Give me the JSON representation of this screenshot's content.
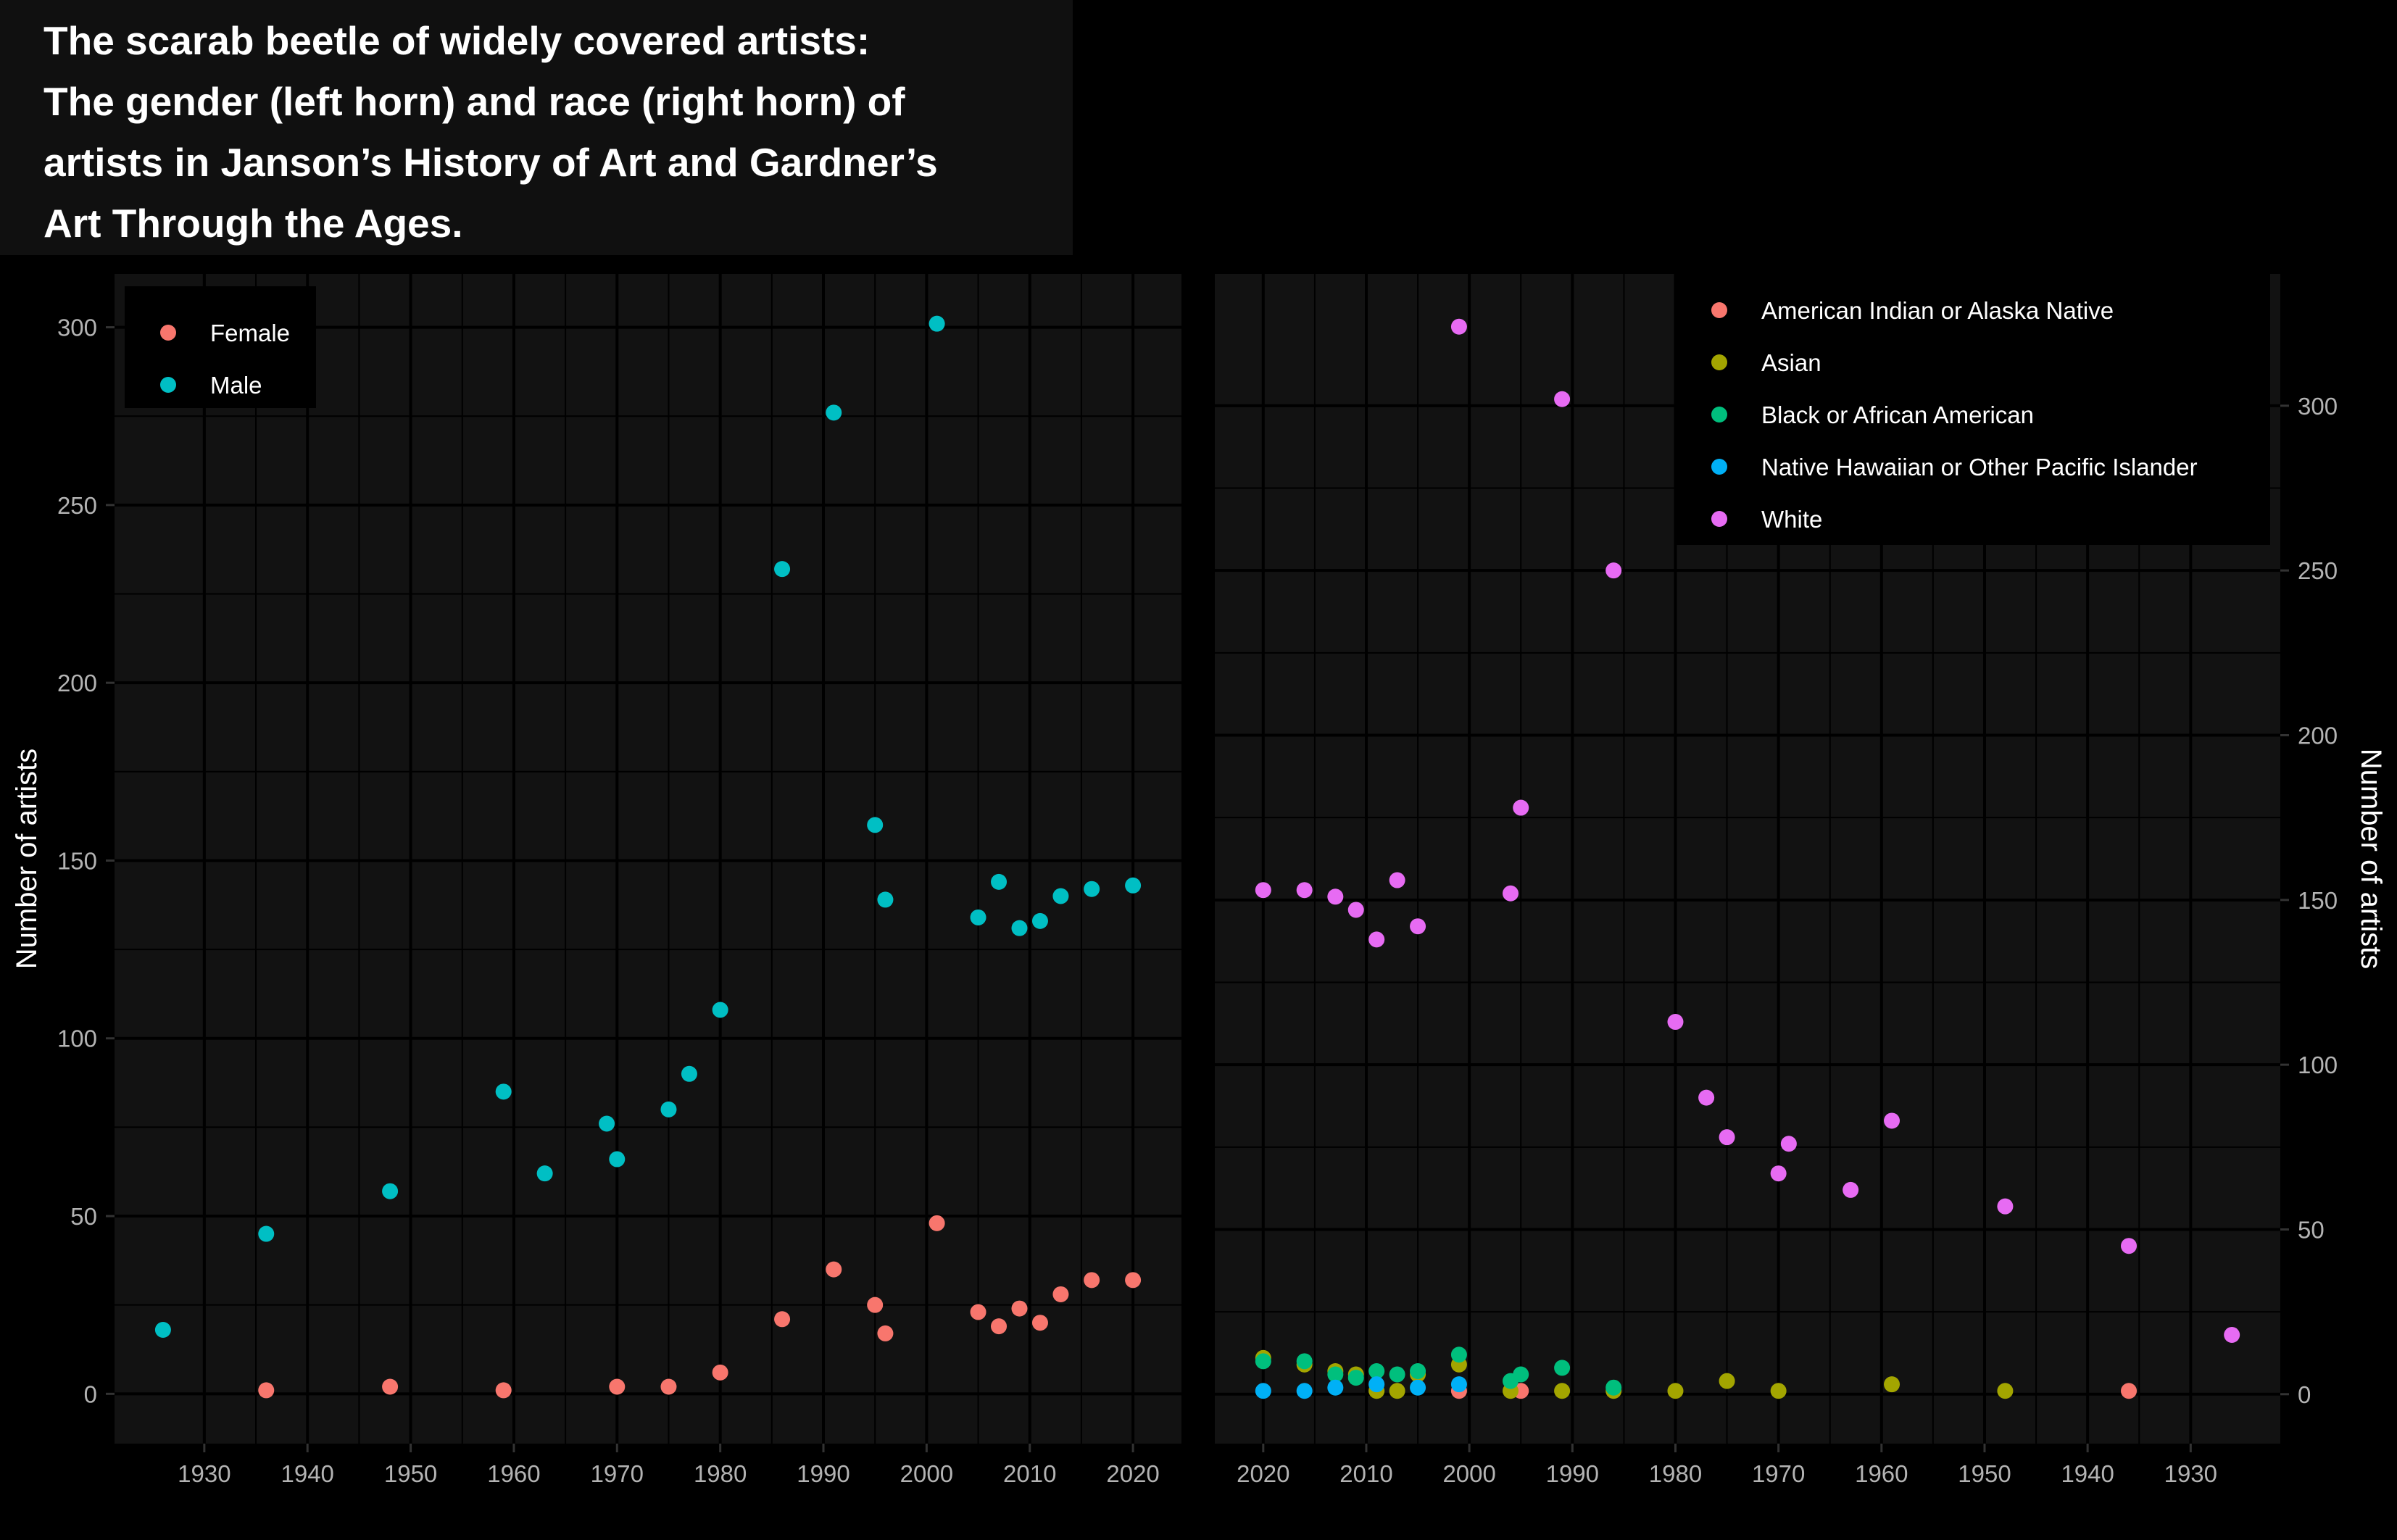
{
  "title_lines": [
    "The scarab beetle of widely covered artists:",
    "The gender (left horn) and race (right horn) of",
    "artists in Janson’s History of Art and Gardner’s",
    "Art Through the Ages."
  ],
  "colors": {
    "background": "#000000",
    "panel": "#121212",
    "grid": "#000000",
    "text": "#ffffff",
    "tick_text": "#b3b3b3"
  },
  "chart_data": [
    {
      "type": "scatter",
      "panel": "left",
      "title": "",
      "xlabel": "",
      "ylabel": "Number of artists",
      "xlim": [
        1921.3,
        2024.7
      ],
      "ylim": [
        -14,
        315
      ],
      "x_ticks": [
        1930,
        1940,
        1950,
        1960,
        1970,
        1980,
        1990,
        2000,
        2010,
        2020
      ],
      "y_ticks": [
        0,
        50,
        100,
        150,
        200,
        250,
        300
      ],
      "x_reversed": false,
      "y_axis_side": "left",
      "grid": true,
      "legend_position": "top-left",
      "series": [
        {
          "name": "Female",
          "color": "#F8766D",
          "points": [
            [
              1936,
              1
            ],
            [
              1948,
              2
            ],
            [
              1959,
              1
            ],
            [
              1970,
              2
            ],
            [
              1975,
              2
            ],
            [
              1980,
              6
            ],
            [
              1986,
              21
            ],
            [
              1991,
              35
            ],
            [
              1995,
              25
            ],
            [
              1996,
              17
            ],
            [
              2001,
              48
            ],
            [
              2005,
              23
            ],
            [
              2007,
              19
            ],
            [
              2009,
              24
            ],
            [
              2011,
              20
            ],
            [
              2013,
              28
            ],
            [
              2016,
              32
            ],
            [
              2020,
              32
            ]
          ]
        },
        {
          "name": "Male",
          "color": "#00BFC4",
          "points": [
            [
              1926,
              18
            ],
            [
              1936,
              45
            ],
            [
              1948,
              57
            ],
            [
              1959,
              85
            ],
            [
              1963,
              62
            ],
            [
              1969,
              76
            ],
            [
              1970,
              66
            ],
            [
              1975,
              80
            ],
            [
              1977,
              90
            ],
            [
              1980,
              108
            ],
            [
              1986,
              232
            ],
            [
              1991,
              276
            ],
            [
              1995,
              160
            ],
            [
              1996,
              139
            ],
            [
              2001,
              301
            ],
            [
              2005,
              134
            ],
            [
              2007,
              144
            ],
            [
              2009,
              131
            ],
            [
              2011,
              133
            ],
            [
              2013,
              140
            ],
            [
              2016,
              142
            ],
            [
              2020,
              143
            ]
          ]
        }
      ]
    },
    {
      "type": "scatter",
      "panel": "right",
      "title": "",
      "xlabel": "",
      "ylabel": "Number of artists",
      "xlim": [
        2024.7,
        1921.3
      ],
      "ylim": [
        -15,
        340
      ],
      "x_ticks": [
        2020,
        2010,
        2000,
        1990,
        1980,
        1970,
        1960,
        1950,
        1940,
        1930
      ],
      "y_ticks": [
        0,
        50,
        100,
        150,
        200,
        250,
        300
      ],
      "x_reversed": true,
      "y_axis_side": "right",
      "grid": true,
      "legend_position": "top-right",
      "series": [
        {
          "name": "American Indian or Alaska Native",
          "color": "#F8766D",
          "points": [
            [
              2001,
              1
            ],
            [
              1995,
              1
            ],
            [
              1936,
              1
            ]
          ]
        },
        {
          "name": "Asian",
          "color": "#A3A500",
          "points": [
            [
              2020,
              11
            ],
            [
              2016,
              9
            ],
            [
              2013,
              7
            ],
            [
              2011,
              6
            ],
            [
              2009,
              1
            ],
            [
              2007,
              1
            ],
            [
              2005,
              6
            ],
            [
              2001,
              9
            ],
            [
              1996,
              1
            ],
            [
              1991,
              1
            ],
            [
              1986,
              1
            ],
            [
              1980,
              1
            ],
            [
              1975,
              4
            ],
            [
              1970,
              1
            ],
            [
              1959,
              3
            ],
            [
              1948,
              1
            ]
          ]
        },
        {
          "name": "Black or African American",
          "color": "#00BF7D",
          "points": [
            [
              2020,
              10
            ],
            [
              2016,
              10
            ],
            [
              2013,
              6
            ],
            [
              2011,
              5
            ],
            [
              2009,
              7
            ],
            [
              2007,
              6
            ],
            [
              2005,
              7
            ],
            [
              2001,
              12
            ],
            [
              1996,
              4
            ],
            [
              1995,
              6
            ],
            [
              1991,
              8
            ],
            [
              1986,
              2
            ]
          ]
        },
        {
          "name": "Native Hawaiian or Other Pacific Islander",
          "color": "#00B0F6",
          "points": [
            [
              2020,
              1
            ],
            [
              2016,
              1
            ],
            [
              2013,
              2
            ],
            [
              2009,
              3
            ],
            [
              2005,
              2
            ],
            [
              2001,
              3
            ]
          ]
        },
        {
          "name": "White",
          "color": "#E76BF3",
          "points": [
            [
              2020,
              153
            ],
            [
              2016,
              153
            ],
            [
              2013,
              151
            ],
            [
              2011,
              147
            ],
            [
              2009,
              138
            ],
            [
              2007,
              156
            ],
            [
              2005,
              142
            ],
            [
              2001,
              324
            ],
            [
              1996,
              152
            ],
            [
              1995,
              178
            ],
            [
              1991,
              302
            ],
            [
              1986,
              250
            ],
            [
              1980,
              113
            ],
            [
              1977,
              90
            ],
            [
              1975,
              78
            ],
            [
              1970,
              67
            ],
            [
              1969,
              76
            ],
            [
              1963,
              62
            ],
            [
              1959,
              83
            ],
            [
              1948,
              57
            ],
            [
              1936,
              45
            ],
            [
              1926,
              18
            ]
          ]
        }
      ]
    }
  ]
}
